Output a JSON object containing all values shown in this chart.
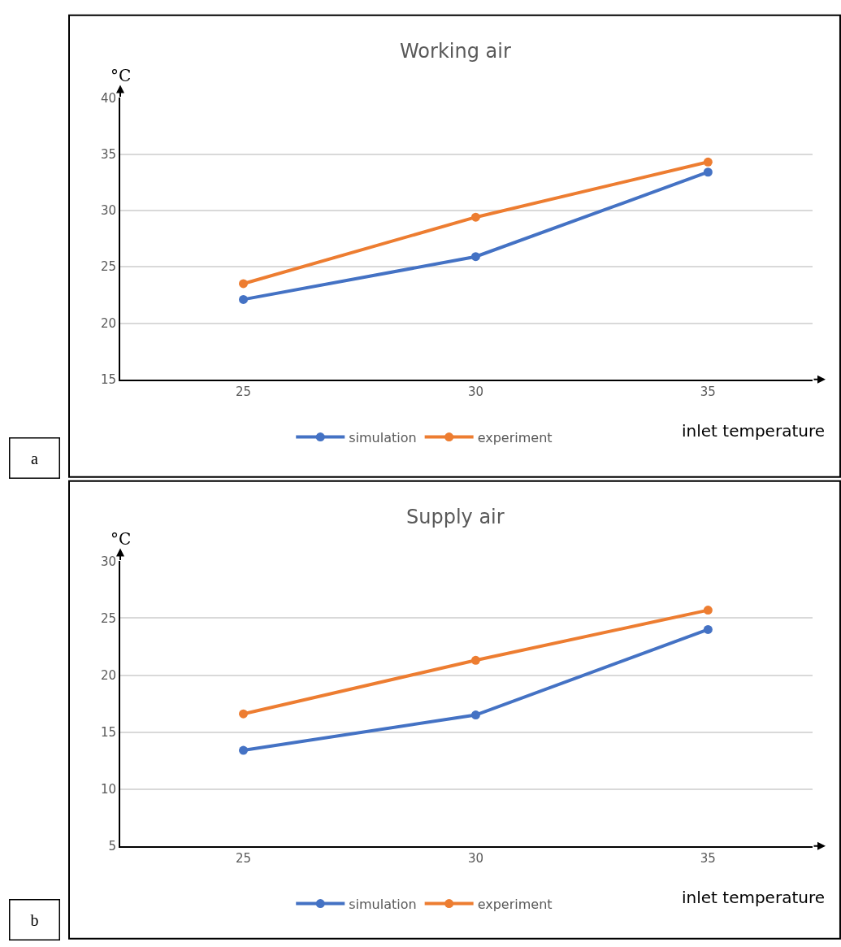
{
  "chart_data": [
    {
      "type": "line",
      "title": "Working air",
      "xlabel": "inlet temperature",
      "ylabel": "°C",
      "categories": [
        "25",
        "30",
        "35"
      ],
      "series": [
        {
          "name": "simulation",
          "color": "#4472c4",
          "values": [
            22.1,
            25.9,
            33.4
          ]
        },
        {
          "name": "experiment",
          "color": "#ed7d31",
          "values": [
            23.5,
            29.4,
            34.3
          ]
        }
      ],
      "ylim": [
        15,
        40
      ],
      "yticks": [
        15,
        20,
        25,
        30,
        35,
        40
      ],
      "grid": "y",
      "legend": "bottom",
      "marker": "circle",
      "line_style": "solid",
      "annotations": [
        "a"
      ]
    },
    {
      "type": "line",
      "title": "Supply air",
      "xlabel": "inlet temperature",
      "ylabel": "°C",
      "categories": [
        "25",
        "30",
        "35"
      ],
      "series": [
        {
          "name": "simulation",
          "color": "#4472c4",
          "values": [
            13.4,
            16.5,
            24.0
          ]
        },
        {
          "name": "experiment",
          "color": "#ed7d31",
          "values": [
            16.6,
            21.3,
            25.7
          ]
        }
      ],
      "ylim": [
        5,
        30
      ],
      "yticks": [
        5,
        10,
        15,
        20,
        25,
        30
      ],
      "grid": "y",
      "legend": "bottom",
      "marker": "circle",
      "line_style": "solid",
      "annotations": [
        "b"
      ]
    }
  ]
}
